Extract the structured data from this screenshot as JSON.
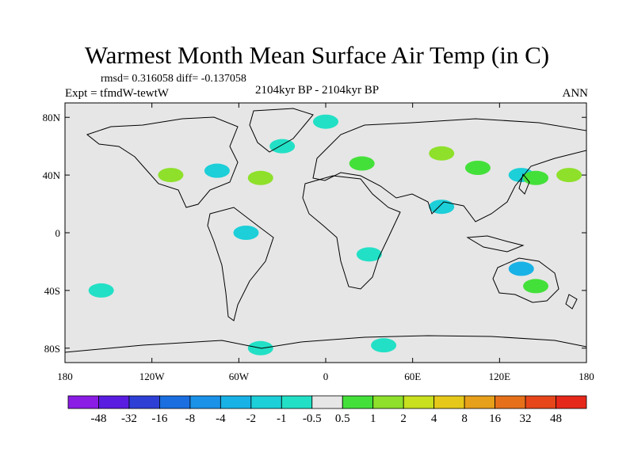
{
  "chart_data": {
    "type": "heatmap",
    "title": "Warmest Month Mean Surface Air Temp (in C)",
    "stats_text": "rmsd= 0.316058 diff= -0.137058",
    "left_label": "Expt = tfmdW-tewtW",
    "center_label": "2104kyr BP - 2104kyr BP",
    "right_label": "ANN",
    "x_ticks": [
      "180",
      "120W",
      "60W",
      "0",
      "60E",
      "120E",
      "180"
    ],
    "x_values": [
      -180,
      -120,
      -60,
      0,
      60,
      120,
      180
    ],
    "y_ticks": [
      "80N",
      "40N",
      "0",
      "40S",
      "80S"
    ],
    "y_values": [
      80,
      40,
      0,
      -40,
      -80
    ],
    "xlim": [
      -180,
      180
    ],
    "ylim": [
      -90,
      90
    ],
    "colorbar": {
      "labels": [
        "-48",
        "-32",
        "-16",
        "-8",
        "-4",
        "-2",
        "-1",
        "-0.5",
        "0.5",
        "1",
        "2",
        "4",
        "8",
        "16",
        "32",
        "48"
      ],
      "colors": [
        "#8a1ce6",
        "#5a1ce0",
        "#2e3fd6",
        "#1a6ee0",
        "#1a92e8",
        "#18b2e6",
        "#1ccfd8",
        "#22e0c6",
        "#e6e6e6",
        "#44e03a",
        "#8ee02a",
        "#c8e01e",
        "#e6c81a",
        "#e6a01a",
        "#e6701a",
        "#e6461a",
        "#e6281a"
      ]
    },
    "anomaly_patches": [
      {
        "lon": 135,
        "lat": 40,
        "color": "#1ccfd8"
      },
      {
        "lon": 145,
        "lat": 38,
        "color": "#44e03a"
      },
      {
        "lon": 168,
        "lat": 40,
        "color": "#8ee02a"
      },
      {
        "lon": -107,
        "lat": 40,
        "color": "#8ee02a"
      },
      {
        "lon": -75,
        "lat": 43,
        "color": "#1ccfd8"
      },
      {
        "lon": -45,
        "lat": 38,
        "color": "#8ee02a"
      },
      {
        "lon": -30,
        "lat": 60,
        "color": "#22e0c6"
      },
      {
        "lon": 0,
        "lat": 77,
        "color": "#22e0c6"
      },
      {
        "lon": 25,
        "lat": 48,
        "color": "#44e03a"
      },
      {
        "lon": 80,
        "lat": 55,
        "color": "#8ee02a"
      },
      {
        "lon": 105,
        "lat": 45,
        "color": "#44e03a"
      },
      {
        "lon": 80,
        "lat": 18,
        "color": "#1ccfd8"
      },
      {
        "lon": -55,
        "lat": 0,
        "color": "#1ccfd8"
      },
      {
        "lon": 30,
        "lat": -15,
        "color": "#22e0c6"
      },
      {
        "lon": 135,
        "lat": -25,
        "color": "#18b2e6"
      },
      {
        "lon": 145,
        "lat": -37,
        "color": "#44e03a"
      },
      {
        "lon": -155,
        "lat": -40,
        "color": "#22e0c6"
      },
      {
        "lon": -45,
        "lat": -80,
        "color": "#22e0c6"
      },
      {
        "lon": 40,
        "lat": -78,
        "color": "#22e0c6"
      }
    ]
  }
}
